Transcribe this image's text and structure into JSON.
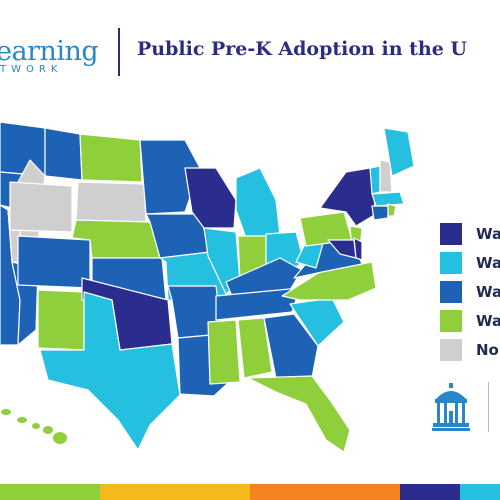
{
  "header": {
    "logo_main": "earning",
    "logo_sub": "TWORK",
    "title": "Public Pre-K Adoption in the U"
  },
  "legend": [
    {
      "label": "Wa",
      "color": "#2b2d8e",
      "icon": "legend-swatch"
    },
    {
      "label": "Wa",
      "color": "#25bfe0",
      "icon": "legend-swatch"
    },
    {
      "label": "Wa",
      "color": "#1e62b5",
      "icon": "legend-swatch"
    },
    {
      "label": "Wa",
      "color": "#8fcf3c",
      "icon": "legend-swatch"
    },
    {
      "label": "No",
      "color": "#cfcfcf",
      "icon": "legend-swatch"
    }
  ],
  "colors": {
    "dark_navy": "#2b2d8e",
    "light_blue": "#25bfe0",
    "medium_blue": "#1e62b5",
    "green": "#8fcf3c",
    "gray": "#cfcfcf",
    "title": "#2c2d80"
  },
  "logo_icon": "unc-old-well-icon",
  "footer_colors": [
    "#8fcf3c",
    "#f6b91c",
    "#f58220",
    "#2b2d8e",
    "#25bfe0"
  ]
}
